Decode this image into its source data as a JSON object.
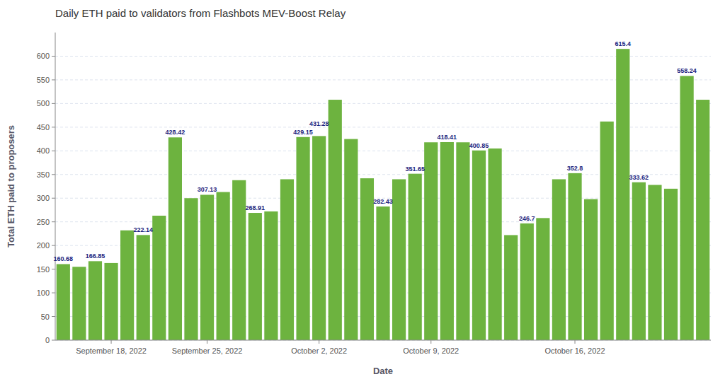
{
  "chart_data": {
    "type": "bar",
    "title": "Daily ETH paid to validators from Flashbots MEV-Boost Relay",
    "x_label": "Date",
    "y_label": "Total ETH paid to proposers",
    "categories": [
      null,
      null,
      null,
      "September 18, 2022",
      null,
      null,
      null,
      null,
      null,
      "September 25, 2022",
      null,
      null,
      null,
      null,
      null,
      null,
      "October 2, 2022",
      null,
      null,
      null,
      null,
      null,
      null,
      "October 9, 2022",
      null,
      null,
      null,
      null,
      null,
      null,
      null,
      null,
      "October 16, 2022",
      null,
      null,
      null,
      null,
      null,
      null,
      null,
      null
    ],
    "values": [
      160.68,
      155.0,
      166.85,
      163.0,
      232.0,
      222.14,
      263.0,
      428.42,
      300.0,
      307.13,
      313.0,
      338.0,
      268.91,
      272.0,
      340.0,
      429.15,
      431.28,
      508.0,
      425.0,
      342.0,
      282.43,
      340.0,
      351.65,
      418.0,
      418.41,
      418.0,
      400.85,
      405.0,
      222.0,
      246.7,
      258.0,
      340.0,
      352.8,
      298.0,
      462.0,
      615.4,
      333.62,
      328.0,
      320.0,
      558.24,
      508.0
    ],
    "value_labels": [
      "160.68",
      null,
      "166.85",
      null,
      null,
      "222.14",
      null,
      "428.42",
      null,
      "307.13",
      null,
      null,
      "268.91",
      null,
      null,
      "429.15",
      "431.28",
      null,
      null,
      null,
      "282.43",
      null,
      "351.65",
      null,
      "418.41",
      null,
      "400.85",
      null,
      null,
      "246.7",
      null,
      null,
      "352.8",
      null,
      null,
      "615.4",
      "333.62",
      null,
      null,
      "558.24",
      null
    ],
    "data_labels": true,
    "color": "#6db33f",
    "ylim": [
      0,
      650
    ],
    "yticks": [
      0,
      50,
      100,
      150,
      200,
      250,
      300,
      350,
      400,
      450,
      500,
      550,
      600
    ],
    "grid": true
  }
}
